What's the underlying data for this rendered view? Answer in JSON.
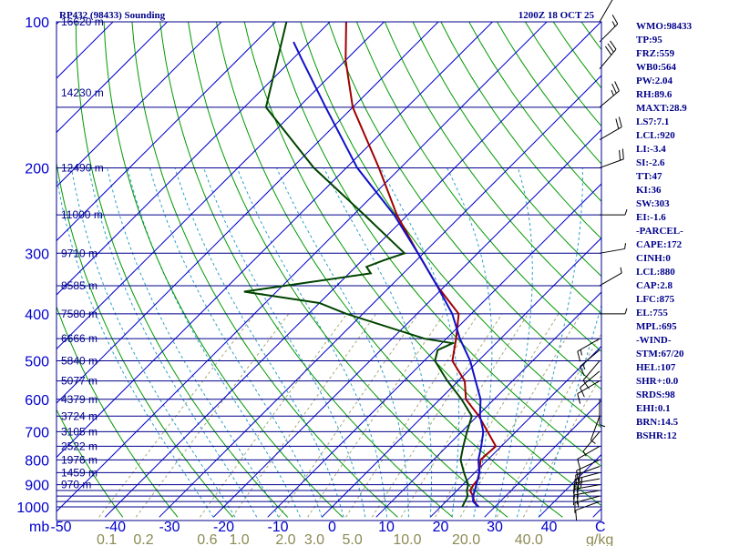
{
  "header": {
    "title": "RP432 (98433) Sounding",
    "time": "1200Z 18 OCT 25"
  },
  "colors": {
    "background": "#ffffff",
    "isobar": "#00008b",
    "isotherm": "#0000cd",
    "dry_adiabat": "#009900",
    "moist_adiabat": "#2aa0c8",
    "mixing_ratio": "#a8a878",
    "temperature": "#a00000",
    "dewpoint": "#004400",
    "parcel": "#1010c8",
    "wind": "#000000",
    "text": "#00008b",
    "mixing_label": "#8b8b55"
  },
  "chart_data": {
    "type": "skew-t log-p sounding",
    "pressure_axis": {
      "label": "mb",
      "range": [
        1000,
        100
      ],
      "scale": "log",
      "tick_labels": [
        100,
        200,
        300,
        400,
        500,
        600,
        700,
        800,
        900,
        1000
      ]
    },
    "temperature_axis": {
      "label": "C",
      "range": [
        -50,
        50
      ],
      "tick_labels": [
        "-50",
        "-40",
        "-30",
        "-20",
        "-10",
        "0",
        "10",
        "20",
        "30",
        "40"
      ]
    },
    "mixing_ratio_axis": {
      "label": "g/kg",
      "tick_labels": [
        "0.1",
        "0.2",
        "0.6",
        "1.0",
        "2.0",
        "3.0",
        "5.0",
        "10.0",
        "20.0",
        "40.0"
      ]
    },
    "height_labels": [
      {
        "p": 100,
        "label": "16620 m"
      },
      {
        "p": 140,
        "label": "14230 m"
      },
      {
        "p": 200,
        "label": "12490 m"
      },
      {
        "p": 250,
        "label": "11000 m"
      },
      {
        "p": 300,
        "label": "9710 m"
      },
      {
        "p": 350,
        "label": "8585 m"
      },
      {
        "p": 400,
        "label": "7580 m"
      },
      {
        "p": 450,
        "label": "6666 m"
      },
      {
        "p": 500,
        "label": "5840 m"
      },
      {
        "p": 550,
        "label": "5077 m"
      },
      {
        "p": 600,
        "label": "4379 m"
      },
      {
        "p": 650,
        "label": "3724 m"
      },
      {
        "p": 700,
        "label": "3105 m"
      },
      {
        "p": 750,
        "label": "2522 m"
      },
      {
        "p": 800,
        "label": "1976 m"
      },
      {
        "p": 850,
        "label": "1459 m"
      },
      {
        "p": 900,
        "label": "970 m"
      }
    ],
    "temperature_profile": [
      [
        1000,
        27.0
      ],
      [
        975,
        25.2
      ],
      [
        950,
        24.0
      ],
      [
        925,
        22.4
      ],
      [
        900,
        22.0
      ],
      [
        875,
        21.8
      ],
      [
        850,
        20.8
      ],
      [
        800,
        18.7
      ],
      [
        750,
        19.0
      ],
      [
        700,
        14.8
      ],
      [
        650,
        10.3
      ],
      [
        600,
        4.8
      ],
      [
        550,
        1.2
      ],
      [
        500,
        -4.8
      ],
      [
        450,
        -8.2
      ],
      [
        400,
        -12.3
      ],
      [
        350,
        -21.5
      ],
      [
        300,
        -31.0
      ],
      [
        250,
        -42.0
      ],
      [
        200,
        -54.0
      ],
      [
        150,
        -70.0
      ],
      [
        120,
        -80.0
      ],
      [
        100,
        -87.0
      ]
    ],
    "dewpoint_profile": [
      [
        1000,
        24.0
      ],
      [
        975,
        23.5
      ],
      [
        950,
        23.0
      ],
      [
        925,
        21.8
      ],
      [
        900,
        21.0
      ],
      [
        850,
        18.0
      ],
      [
        800,
        15.0
      ],
      [
        750,
        13.0
      ],
      [
        700,
        11.0
      ],
      [
        650,
        9.0
      ],
      [
        600,
        4.0
      ],
      [
        550,
        -2.0
      ],
      [
        500,
        -8.0
      ],
      [
        475,
        -9.5
      ],
      [
        460,
        -8.0
      ],
      [
        450,
        -14.0
      ],
      [
        400,
        -33.0
      ],
      [
        380,
        -40.0
      ],
      [
        360,
        -56.0
      ],
      [
        330,
        -36.0
      ],
      [
        320,
        -38.0
      ],
      [
        310,
        -36.0
      ],
      [
        300,
        -33.5
      ],
      [
        250,
        -48.0
      ],
      [
        200,
        -66.0
      ],
      [
        150,
        -86.0
      ],
      [
        100,
        -98.0
      ]
    ],
    "parcel_profile": [
      [
        1000,
        27.0
      ],
      [
        975,
        25.0
      ],
      [
        950,
        24.0
      ],
      [
        900,
        22.5
      ],
      [
        850,
        20.8
      ],
      [
        800,
        18.3
      ],
      [
        750,
        16.3
      ],
      [
        700,
        14.0
      ],
      [
        650,
        10.5
      ],
      [
        600,
        7.5
      ],
      [
        550,
        3.2
      ],
      [
        500,
        -1.5
      ],
      [
        450,
        -7.5
      ],
      [
        400,
        -13.5
      ],
      [
        350,
        -21.5
      ],
      [
        300,
        -31.0
      ],
      [
        250,
        -42.5
      ],
      [
        200,
        -58.0
      ],
      [
        150,
        -75.0
      ],
      [
        120,
        -88.0
      ],
      [
        110,
        -93.0
      ]
    ],
    "wind_barbs": [
      {
        "p": 975,
        "dir": 250,
        "spd": 10
      },
      {
        "p": 950,
        "dir": 255,
        "spd": 15
      },
      {
        "p": 925,
        "dir": 260,
        "spd": 20
      },
      {
        "p": 900,
        "dir": 260,
        "spd": 20
      },
      {
        "p": 875,
        "dir": 260,
        "spd": 25
      },
      {
        "p": 850,
        "dir": 255,
        "spd": 25
      },
      {
        "p": 825,
        "dir": 250,
        "spd": 20
      },
      {
        "p": 800,
        "dir": 245,
        "spd": 15
      },
      {
        "p": 750,
        "dir": 240,
        "spd": 10
      },
      {
        "p": 700,
        "dir": 220,
        "spd": 5
      },
      {
        "p": 650,
        "dir": 200,
        "spd": 5
      },
      {
        "p": 600,
        "dir": 180,
        "spd": 5
      },
      {
        "p": 550,
        "dir": 240,
        "spd": 10
      },
      {
        "p": 525,
        "dir": 230,
        "spd": 10
      },
      {
        "p": 500,
        "dir": 220,
        "spd": 10
      },
      {
        "p": 475,
        "dir": 230,
        "spd": 15
      },
      {
        "p": 450,
        "dir": 240,
        "spd": 15
      },
      {
        "p": 400,
        "dir": 90,
        "spd": 5
      },
      {
        "p": 350,
        "dir": 60,
        "spd": 5
      },
      {
        "p": 300,
        "dir": 80,
        "spd": 5
      },
      {
        "p": 250,
        "dir": 90,
        "spd": 5
      },
      {
        "p": 200,
        "dir": 70,
        "spd": 20
      },
      {
        "p": 175,
        "dir": 60,
        "spd": 20
      },
      {
        "p": 150,
        "dir": 50,
        "spd": 25
      },
      {
        "p": 125,
        "dir": 40,
        "spd": 30
      },
      {
        "p": 110,
        "dir": 45,
        "spd": 15
      },
      {
        "p": 100,
        "dir": 30,
        "spd": 10
      }
    ]
  },
  "stats": [
    "WMO:98433",
    "TP:95",
    "FRZ:559",
    "WB0:564",
    "PW:2.04",
    "RH:89.6",
    "MAXT:28.9",
    "LS7:7.1",
    "LCL:920",
    "LI:-3.4",
    "SI:-2.6",
    "TT:47",
    "KI:36",
    "SW:303",
    "EI:-1.6",
    "-PARCEL-",
    "CAPE:172",
    "CINH:0",
    "LCL:880",
    "CAP:2.8",
    "LFC:875",
    "EL:755",
    "MPL:695",
    "-WIND-",
    "STM:67/20",
    "HEL:107",
    "SHR+:0.0",
    "SRDS:98",
    "EHI:0.1",
    "BRN:14.5",
    "BSHR:12"
  ]
}
